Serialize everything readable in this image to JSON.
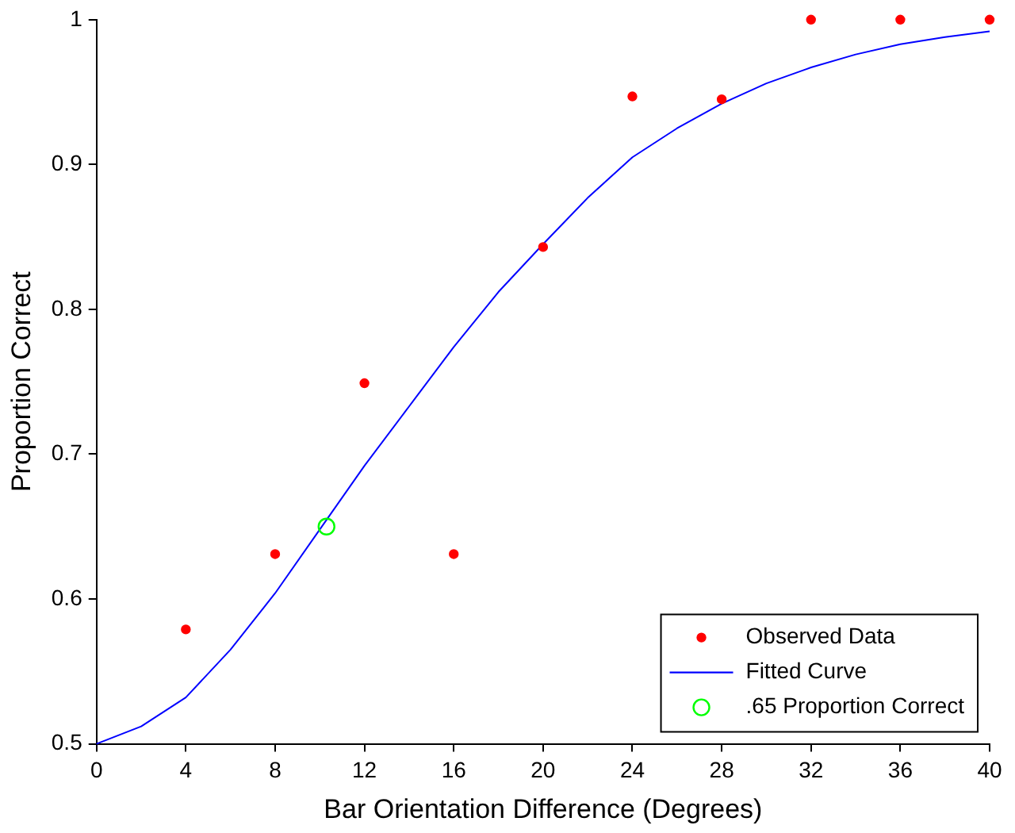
{
  "chart_data": {
    "type": "scatter",
    "xlabel": "Bar Orientation Difference (Degrees)",
    "ylabel": "Proportion Correct",
    "xlim": [
      0,
      40
    ],
    "xticks": [
      0,
      4,
      8,
      12,
      16,
      20,
      24,
      28,
      32,
      36,
      40
    ],
    "ylim": [
      0.5,
      1
    ],
    "yticks": [
      0.5,
      0.6,
      0.7,
      0.8,
      0.9,
      1
    ],
    "grid": false,
    "legend": "bottom right",
    "series": [
      {
        "name": "Observed Data",
        "marker": "circle",
        "color": "#ff0000",
        "x": [
          4,
          8,
          12,
          16,
          20,
          24,
          28,
          32,
          36,
          40
        ],
        "values": [
          0.579,
          0.631,
          0.749,
          0.631,
          0.843,
          0.947,
          0.945,
          1,
          1,
          1
        ]
      },
      {
        "name": "Fitted Curve",
        "type": "line",
        "marker": "none",
        "color": "#0000ff",
        "x": [
          0,
          2,
          4,
          6,
          8,
          10,
          12,
          14,
          16,
          18,
          20,
          22,
          24,
          26,
          28,
          30,
          32,
          34,
          36,
          38,
          40
        ],
        "values": [
          0.5,
          0.512,
          0.532,
          0.565,
          0.604,
          0.648,
          0.692,
          0.733,
          0.774,
          0.812,
          0.845,
          0.877,
          0.905,
          0.925,
          0.942,
          0.956,
          0.967,
          0.976,
          0.983,
          0.988,
          0.992
        ]
      },
      {
        "name": ".65 Proportion Correct",
        "marker": "circle",
        "color": "#00ff00",
        "x": [
          10.3
        ],
        "values": [
          0.65
        ]
      }
    ]
  }
}
